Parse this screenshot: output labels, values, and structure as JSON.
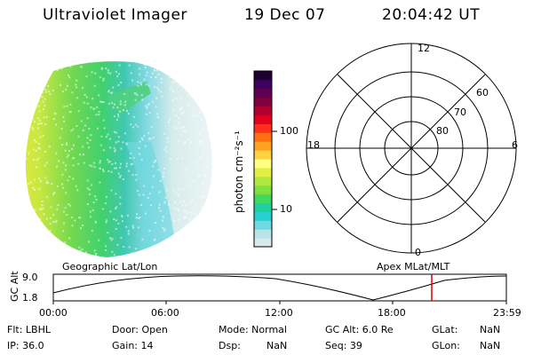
{
  "header": {
    "instrument": "Ultraviolet Imager",
    "date": "19 Dec 07",
    "time": "20:04:42 UT"
  },
  "colorbar": {
    "label": "photon cm⁻²s⁻¹",
    "tick_labels": [
      "100",
      "10"
    ],
    "colors": [
      "#d8eaea",
      "#b8e4e8",
      "#6fd8e0",
      "#28d0d0",
      "#20d0a0",
      "#40d860",
      "#80e040",
      "#b0e840",
      "#e0f040",
      "#ffff80",
      "#ffd040",
      "#ffa020",
      "#ff7010",
      "#ff3020",
      "#e00020",
      "#b00030",
      "#800040",
      "#600050",
      "#400060",
      "#200030"
    ]
  },
  "polar_plot": {
    "ring_labels": [
      "60",
      "70",
      "80"
    ],
    "mlt_labels": {
      "top": "12",
      "left": "18",
      "right": "6",
      "bottom": "0"
    }
  },
  "timeline": {
    "left_label": "Geographic Lat/Lon",
    "right_label": "Apex MLat/MLT",
    "yaxis_label": "GC Alt",
    "y_max_label": "9.0",
    "y_min_label": "1.8",
    "time_ticks": [
      "00:00",
      "06:00",
      "12:00",
      "18:00",
      "23:59"
    ],
    "marker_color": "#dd0000",
    "marker_time": "20:04:42"
  },
  "info": {
    "filter": "Flt: LBHL",
    "ip": "IP: 36.0",
    "door": "Door: Open",
    "gain": "Gain: 14",
    "mode": "Mode: Normal",
    "dsp": "Dsp:",
    "dsp_value": "NaN",
    "gc_alt": "GC Alt: 6.0 Re",
    "seq": "Seq: 39",
    "glat": "GLat:",
    "glat_value": "NaN",
    "glon": "GLon:",
    "glon_value": "NaN"
  }
}
